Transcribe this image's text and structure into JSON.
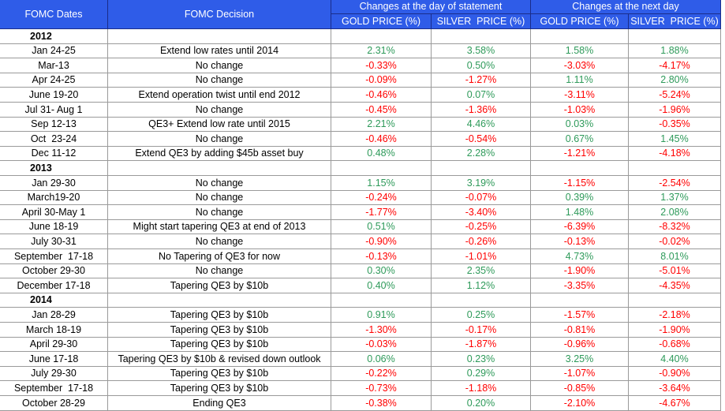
{
  "header": {
    "dates": "FOMC Dates",
    "decision": "FOMC Decision",
    "group_day": "Changes at the day of statement",
    "group_next": "Changes at the next day",
    "columns": [
      "GOLD PRICE (%)",
      "SILVER  PRICE (%)",
      "GOLD PRICE (%)",
      "SILVER  PRICE (%)"
    ]
  },
  "sections": [
    {
      "year": "2012",
      "rows": [
        {
          "date": "Jan 24-25",
          "decision": "Extend low rates until 2014",
          "values": [
            "2.31%",
            "3.58%",
            "1.58%",
            "1.88%"
          ]
        },
        {
          "date": "Mar-13",
          "decision": "No change",
          "values": [
            "-0.33%",
            "0.50%",
            "-3.03%",
            "-4.17%"
          ]
        },
        {
          "date": "Apr 24-25",
          "decision": "No change",
          "values": [
            "-0.09%",
            "-1.27%",
            "1.11%",
            "2.80%"
          ]
        },
        {
          "date": "June 19-20",
          "decision": "Extend operation twist until end 2012",
          "values": [
            "-0.46%",
            "0.07%",
            "-3.11%",
            "-5.24%"
          ]
        },
        {
          "date": "Jul 31- Aug 1",
          "decision": "No change",
          "values": [
            "-0.45%",
            "-1.36%",
            "-1.03%",
            "-1.96%"
          ]
        },
        {
          "date": "Sep 12-13",
          "decision": "QE3+ Extend low rate until 2015",
          "values": [
            "2.21%",
            "4.46%",
            "0.03%",
            "-0.35%"
          ]
        },
        {
          "date": "Oct  23-24",
          "decision": "No change",
          "values": [
            "-0.46%",
            "-0.54%",
            "0.67%",
            "1.45%"
          ]
        },
        {
          "date": "Dec 11-12",
          "decision": "Extend QE3 by adding $45b asset buy",
          "values": [
            "0.48%",
            "2.28%",
            "-1.21%",
            "-4.18%"
          ]
        }
      ]
    },
    {
      "year": "2013",
      "rows": [
        {
          "date": "Jan 29-30",
          "decision": "No change",
          "values": [
            "1.15%",
            "3.19%",
            "-1.15%",
            "-2.54%"
          ]
        },
        {
          "date": "March19-20",
          "decision": "No change",
          "values": [
            "-0.24%",
            "-0.07%",
            "0.39%",
            "1.37%"
          ]
        },
        {
          "date": "April 30-May 1",
          "decision": "No change",
          "values": [
            "-1.77%",
            "-3.40%",
            "1.48%",
            "2.08%"
          ]
        },
        {
          "date": "June 18-19",
          "decision": "Might start tapering QE3 at end of 2013",
          "values": [
            "0.51%",
            "-0.25%",
            "-6.39%",
            "-8.32%"
          ]
        },
        {
          "date": "July 30-31",
          "decision": "No change",
          "values": [
            "-0.90%",
            "-0.26%",
            "-0.13%",
            "-0.02%"
          ]
        },
        {
          "date": "September  17-18",
          "decision": "No Tapering of QE3 for now",
          "values": [
            "-0.13%",
            "-1.01%",
            "4.73%",
            "8.01%"
          ]
        },
        {
          "date": "October 29-30",
          "decision": "No change",
          "values": [
            "0.30%",
            "2.35%",
            "-1.90%",
            "-5.01%"
          ]
        },
        {
          "date": "December 17-18",
          "decision": "Tapering QE3 by $10b",
          "values": [
            "0.40%",
            "1.12%",
            "-3.35%",
            "-4.35%"
          ]
        }
      ]
    },
    {
      "year": "2014",
      "rows": [
        {
          "date": "Jan 28-29",
          "decision": "Tapering QE3 by $10b",
          "values": [
            "0.91%",
            "0.25%",
            "-1.57%",
            "-2.18%"
          ]
        },
        {
          "date": "March 18-19",
          "decision": "Tapering QE3 by $10b",
          "values": [
            "-1.30%",
            "-0.17%",
            "-0.81%",
            "-1.90%"
          ]
        },
        {
          "date": "April 29-30",
          "decision": "Tapering QE3 by $10b",
          "values": [
            "-0.03%",
            "-1.87%",
            "-0.96%",
            "-0.68%"
          ]
        },
        {
          "date": "June 17-18",
          "decision": "Tapering QE3 by $10b & revised down outlook",
          "values": [
            "0.06%",
            "0.23%",
            "3.25%",
            "4.40%"
          ]
        },
        {
          "date": "July 29-30",
          "decision": "Tapering QE3 by $10b",
          "values": [
            "-0.22%",
            "0.29%",
            "-1.07%",
            "-0.90%"
          ]
        },
        {
          "date": "September  17-18",
          "decision": "Tapering QE3 by $10b",
          "values": [
            "-0.73%",
            "-1.18%",
            "-0.85%",
            "-3.64%"
          ]
        },
        {
          "date": "October 28-29",
          "decision": "Ending QE3",
          "values": [
            "-0.38%",
            "0.20%",
            "-2.10%",
            "-4.67%"
          ]
        }
      ]
    }
  ]
}
